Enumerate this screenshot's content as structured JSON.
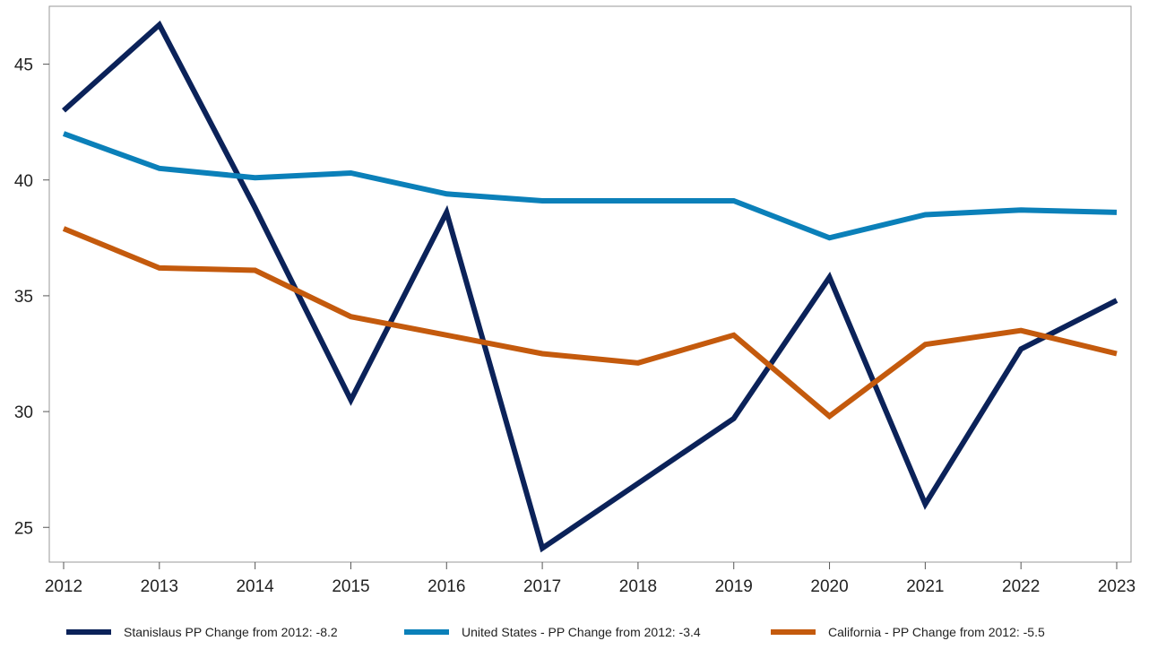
{
  "chart_data": {
    "type": "line",
    "x": [
      "2012",
      "2013",
      "2014",
      "2015",
      "2016",
      "2017",
      "2018",
      "2019",
      "2020",
      "2021",
      "2022",
      "2023"
    ],
    "ylim": [
      23.5,
      47.5
    ],
    "yticks": [
      "25",
      "30",
      "35",
      "40",
      "45"
    ],
    "grid": false,
    "legend_position": "bottom",
    "series": [
      {
        "name": "Stanislaus PP Change from 2012: -8.2",
        "color": "#0b2259",
        "values": [
          43.0,
          46.7,
          38.8,
          30.5,
          38.6,
          24.1,
          26.9,
          29.7,
          35.8,
          26.0,
          32.7,
          34.8
        ]
      },
      {
        "name": "United States - PP Change from 2012: -3.4",
        "color": "#0b80b9",
        "values": [
          42.0,
          40.5,
          40.1,
          40.3,
          39.4,
          39.1,
          39.1,
          39.1,
          37.5,
          38.5,
          38.7,
          38.6
        ]
      },
      {
        "name": "California - PP Change from 2012: -5.5",
        "color": "#c45a0d",
        "values": [
          37.9,
          36.2,
          36.1,
          34.1,
          33.3,
          32.5,
          32.1,
          33.3,
          29.8,
          32.9,
          33.5,
          32.5
        ]
      }
    ]
  }
}
